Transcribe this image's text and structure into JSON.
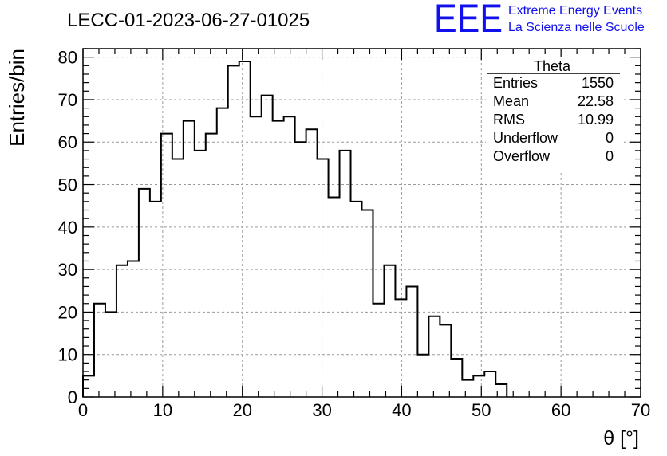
{
  "header": {
    "logo_text": "EEE",
    "org_line1": "Extreme Energy Events",
    "org_line2": "La Scienza nelle Scuole",
    "brand_color": "#1010ee"
  },
  "chart_data": {
    "type": "bar",
    "title": "LECC-01-2023-06-27-01025",
    "xlabel": "θ [°]",
    "ylabel": "Entries/bin",
    "xlim": [
      0,
      70
    ],
    "ylim": [
      0,
      82
    ],
    "xticks": [
      0,
      10,
      20,
      30,
      40,
      50,
      60,
      70
    ],
    "yticks": [
      0,
      10,
      20,
      30,
      40,
      50,
      60,
      70,
      80
    ],
    "grid": true,
    "bin_edges": [
      0,
      1.4,
      2.8,
      4.2,
      5.6,
      7,
      8.4,
      9.8,
      11.2,
      12.6,
      14,
      15.4,
      16.8,
      18.2,
      19.6,
      21,
      22.4,
      23.8,
      25.2,
      26.6,
      28,
      29.4,
      30.8,
      32.2,
      33.6,
      35,
      36.4,
      37.8,
      39.2,
      40.6,
      42,
      43.4,
      44.8,
      46.2,
      47.6,
      49,
      50.4,
      51.8,
      53.2
    ],
    "values": [
      5,
      22,
      20,
      31,
      32,
      49,
      46,
      62,
      56,
      65,
      58,
      62,
      68,
      78,
      79,
      66,
      71,
      65,
      66,
      60,
      63,
      56,
      47,
      58,
      46,
      44,
      22,
      31,
      23,
      26,
      10,
      19,
      17,
      9,
      4,
      5,
      6,
      3
    ],
    "stats_box": {
      "title": "Theta",
      "rows": [
        {
          "label": "Entries",
          "value": "1550"
        },
        {
          "label": "Mean",
          "value": "22.58"
        },
        {
          "label": "RMS",
          "value": "10.99"
        },
        {
          "label": "Underflow",
          "value": "0"
        },
        {
          "label": "Overflow",
          "value": "0"
        }
      ]
    }
  }
}
